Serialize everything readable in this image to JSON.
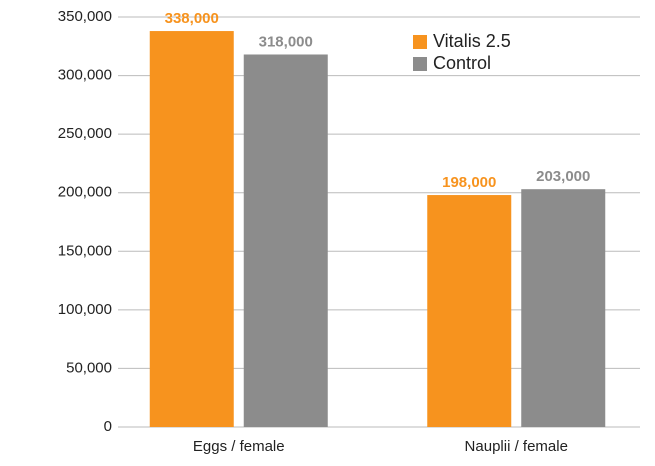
{
  "chart_data": {
    "type": "bar",
    "categories": [
      "Eggs / female",
      "Nauplii / female"
    ],
    "series": [
      {
        "name": "Vitalis 2.5",
        "color": "#f7931e",
        "values": [
          338000,
          198000
        ],
        "value_labels": [
          "338,000",
          "198,000"
        ]
      },
      {
        "name": "Control",
        "color": "#8c8c8c",
        "values": [
          318000,
          203000
        ],
        "value_labels": [
          "318,000",
          "203,000"
        ]
      }
    ],
    "ylim": [
      0,
      350000
    ],
    "yticks": [
      0,
      {
        "value": 50000,
        "label": "50,000"
      },
      {
        "value": 100000,
        "label": "100,000"
      },
      {
        "value": 150000,
        "label": "150,000"
      },
      {
        "value": 200000,
        "label": "200,000"
      },
      {
        "value": 250000,
        "label": "250,000"
      },
      {
        "value": 300000,
        "label": "300,000"
      },
      {
        "value": 350000,
        "label": "350,000"
      }
    ],
    "grid": true,
    "legend": "top-right"
  }
}
